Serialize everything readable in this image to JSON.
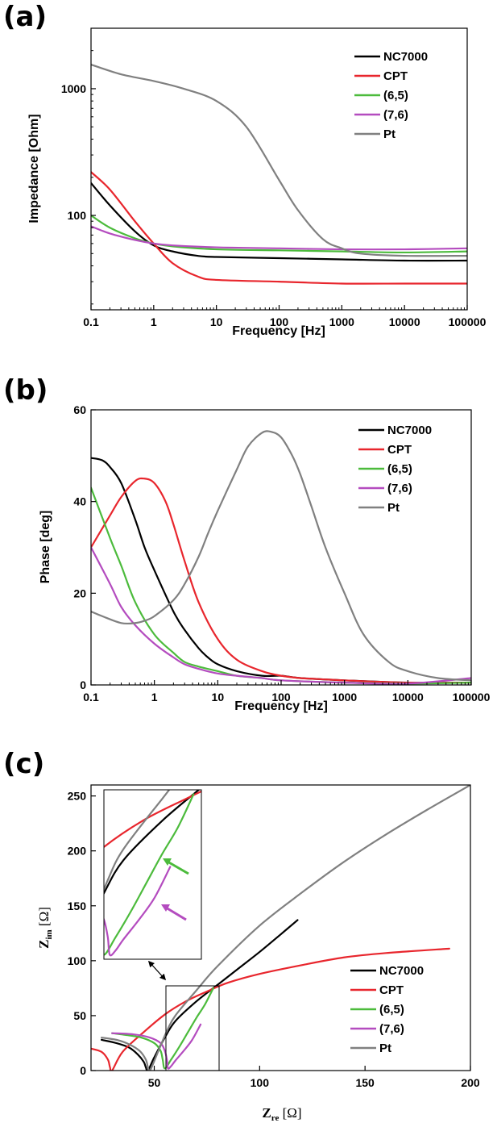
{
  "colors": {
    "NC7000": "#000000",
    "CPT": "#e8262d",
    "(6,5)": "#4cbb3c",
    "(7,6)": "#b44cbf",
    "Pt": "#808080"
  },
  "chart_data": [
    {
      "panel": "(a)",
      "type": "line",
      "xlabel": "Frequency [Hz]",
      "ylabel": "Impedance [Ohm]",
      "xscale": "log",
      "yscale": "log",
      "xlim": [
        0.1,
        100000
      ],
      "ylim": [
        18,
        3000
      ],
      "xticks": [
        0.1,
        1,
        10,
        100,
        1000,
        10000,
        100000
      ],
      "xtick_labels": [
        "0.1",
        "1",
        "10",
        "100",
        "1000",
        "10000",
        "100000"
      ],
      "yticks": [
        100,
        1000
      ],
      "ytick_labels": [
        "100",
        "1000"
      ],
      "legend_position": "top-right",
      "series": [
        {
          "name": "NC7000",
          "x": [
            0.1,
            0.2,
            0.5,
            1,
            2,
            5,
            10,
            100,
            1000,
            10000,
            100000
          ],
          "y": [
            180,
            120,
            75,
            58,
            52,
            48,
            47,
            46,
            45,
            44,
            44
          ]
        },
        {
          "name": "CPT",
          "x": [
            0.1,
            0.2,
            0.5,
            1,
            2,
            5,
            10,
            100,
            1000,
            10000,
            100000
          ],
          "y": [
            220,
            160,
            90,
            60,
            42,
            33,
            31,
            30,
            29,
            29,
            29
          ]
        },
        {
          "name": "(6,5)",
          "x": [
            0.1,
            0.2,
            0.5,
            1,
            2,
            10,
            100,
            1000,
            10000,
            100000
          ],
          "y": [
            100,
            80,
            66,
            60,
            57,
            54,
            53,
            52,
            51,
            52
          ]
        },
        {
          "name": "(7,6)",
          "x": [
            0.1,
            0.2,
            0.5,
            1,
            2,
            10,
            100,
            1000,
            10000,
            100000
          ],
          "y": [
            82,
            72,
            64,
            60,
            58,
            56,
            55,
            54,
            54,
            55
          ]
        },
        {
          "name": "Pt",
          "x": [
            0.1,
            0.3,
            1,
            3,
            10,
            30,
            100,
            200,
            500,
            1000,
            2000,
            10000,
            100000
          ],
          "y": [
            1550,
            1300,
            1150,
            1000,
            800,
            500,
            190,
            110,
            65,
            55,
            50,
            48,
            48
          ]
        }
      ]
    },
    {
      "panel": "(b)",
      "type": "line",
      "xlabel": "Frequency [Hz]",
      "ylabel": "Phase [deg]",
      "xscale": "log",
      "yscale": "linear",
      "xlim": [
        0.1,
        100000
      ],
      "ylim": [
        0,
        60
      ],
      "xticks": [
        0.1,
        1,
        10,
        100,
        1000,
        10000,
        100000
      ],
      "xtick_labels": [
        "0.1",
        "1",
        "10",
        "100",
        "1000",
        "10000",
        "100000"
      ],
      "yticks": [
        0,
        20,
        40,
        60
      ],
      "ytick_labels": [
        "0",
        "20",
        "40",
        "60"
      ],
      "legend_position": "top-right",
      "series": [
        {
          "name": "NC7000",
          "x": [
            0.1,
            0.15,
            0.2,
            0.3,
            0.5,
            0.7,
            1,
            2,
            3,
            5,
            7,
            10,
            20,
            50,
            100,
            200,
            1000,
            10000,
            100000
          ],
          "y": [
            49.5,
            49,
            47.5,
            44,
            36,
            30,
            25,
            16,
            12,
            8,
            6,
            4.5,
            3,
            2,
            2,
            1.5,
            1,
            0.5,
            0.5
          ]
        },
        {
          "name": "CPT",
          "x": [
            0.1,
            0.2,
            0.3,
            0.5,
            0.7,
            1,
            1.5,
            2,
            3,
            5,
            10,
            20,
            50,
            100,
            200,
            500,
            1000,
            10000,
            100000
          ],
          "y": [
            30,
            37,
            41,
            44.5,
            45,
            44,
            40,
            35,
            27,
            18,
            10,
            5.5,
            3,
            2,
            1.5,
            1.2,
            1,
            0.5,
            0.5
          ]
        },
        {
          "name": "(6,5)",
          "x": [
            0.1,
            0.2,
            0.3,
            0.5,
            1,
            2,
            3,
            5,
            10,
            20,
            50,
            100,
            1000,
            10000,
            100000
          ],
          "y": [
            43,
            32,
            26,
            18,
            11,
            7,
            5,
            4,
            3,
            2,
            1.5,
            1,
            0.5,
            0.3,
            0.5
          ]
        },
        {
          "name": "(7,6)",
          "x": [
            0.1,
            0.2,
            0.3,
            0.5,
            1,
            2,
            3,
            5,
            10,
            20,
            50,
            100,
            1000,
            10000,
            100000
          ],
          "y": [
            30,
            22,
            17,
            13,
            9,
            6,
            4.5,
            3.5,
            2.5,
            2,
            1.5,
            1,
            0.5,
            0.3,
            1.5
          ]
        },
        {
          "name": "Pt",
          "x": [
            0.1,
            0.15,
            0.3,
            0.5,
            0.7,
            1,
            2,
            3,
            5,
            7,
            10,
            20,
            30,
            50,
            70,
            100,
            150,
            200,
            300,
            500,
            1000,
            2000,
            5000,
            10000,
            30000,
            100000
          ],
          "y": [
            16,
            15,
            13.5,
            13.5,
            14,
            15,
            18.5,
            22,
            28,
            33,
            38,
            47,
            52,
            55,
            55.2,
            54,
            50,
            46,
            39,
            30,
            20,
            11,
            5,
            3,
            1.5,
            1
          ]
        }
      ]
    },
    {
      "panel": "(c)",
      "type": "line",
      "xlabel_main": "Z",
      "xlabel_sub": "re",
      "xlabel_unit": " [Ω]",
      "ylabel_main": "Z",
      "ylabel_sub": "im",
      "ylabel_unit": " [Ω]",
      "xscale": "linear",
      "yscale": "linear",
      "xlim": [
        20,
        200
      ],
      "ylim": [
        0,
        260
      ],
      "xticks": [
        50,
        100,
        150,
        200
      ],
      "xtick_labels": [
        "50",
        "100",
        "150",
        "200"
      ],
      "yticks": [
        0,
        50,
        100,
        150,
        200,
        250
      ],
      "ytick_labels": [
        "0",
        "50",
        "100",
        "150",
        "200",
        "250"
      ],
      "legend_position": "bottom-right",
      "inset": {
        "xlim": [
          55,
          80
        ],
        "ylim": [
          0,
          77
        ]
      },
      "series": [
        {
          "name": "NC7000",
          "x": [
            25,
            32,
            38,
            42,
            45,
            46,
            47,
            50,
            55,
            60,
            70,
            80,
            90,
            100,
            110,
            118
          ],
          "y": [
            28,
            25,
            21,
            15,
            8,
            3,
            0,
            12,
            30,
            45,
            63,
            78,
            93,
            108,
            124,
            137
          ]
        },
        {
          "name": "CPT",
          "x": [
            20,
            25,
            28,
            29,
            30,
            35,
            45,
            55,
            65,
            75,
            85,
            100,
            120,
            140,
            160,
            190
          ],
          "y": [
            20,
            17,
            10,
            3,
            0,
            17,
            35,
            51,
            63,
            72,
            80,
            88,
            96,
            103,
            107,
            111
          ]
        },
        {
          "name": "(6,5)",
          "x": [
            30,
            38,
            44,
            50,
            53,
            54,
            55,
            58,
            62,
            66,
            70,
            74,
            78
          ],
          "y": [
            34,
            32,
            30,
            25,
            18,
            10,
            2,
            10,
            22,
            35,
            48,
            60,
            75
          ]
        },
        {
          "name": "(7,6)",
          "x": [
            30,
            40,
            48,
            53,
            55,
            56,
            56.5,
            58,
            60,
            64,
            68,
            72
          ],
          "y": [
            34,
            33,
            30,
            25,
            18,
            10,
            2,
            4,
            9,
            18,
            28,
            42
          ]
        },
        {
          "name": "Pt",
          "x": [
            25,
            32,
            38,
            43,
            46,
            47,
            48,
            52,
            56,
            60,
            70,
            80,
            100,
            120,
            140,
            160,
            180,
            200
          ],
          "y": [
            30,
            28,
            24,
            18,
            10,
            3,
            0,
            18,
            36,
            50,
            73,
            95,
            132,
            162,
            190,
            215,
            238,
            260
          ]
        }
      ]
    }
  ]
}
